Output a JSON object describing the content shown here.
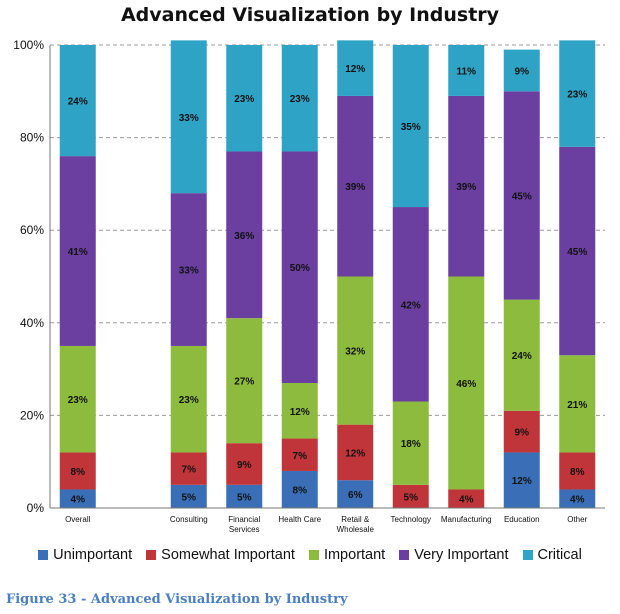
{
  "chart_data": {
    "type": "bar",
    "stacked": true,
    "title": "Advanced Visualization by Industry",
    "categories": [
      "Overall",
      "",
      "Consulting",
      "Financial Services",
      "Health Care",
      "Retail & Wholesale",
      "Technology",
      "Manufacturing",
      "Education",
      "Other"
    ],
    "category_lines": [
      [
        "Overall"
      ],
      [],
      [
        "Consulting"
      ],
      [
        "Financial",
        "Services"
      ],
      [
        "Health Care"
      ],
      [
        "Retail &",
        "Wholesale"
      ],
      [
        "Technology"
      ],
      [
        "Manufacturing"
      ],
      [
        "Education"
      ],
      [
        "Other"
      ]
    ],
    "series": [
      {
        "name": "Unimportant",
        "color": "#3a6fb7",
        "values": [
          4,
          null,
          5,
          5,
          8,
          6,
          0,
          0,
          12,
          4
        ]
      },
      {
        "name": "Somewhat Important",
        "color": "#c0353a",
        "values": [
          8,
          null,
          7,
          9,
          7,
          12,
          5,
          4,
          9,
          8
        ]
      },
      {
        "name": "Important",
        "color": "#8dbb3d",
        "values": [
          23,
          null,
          23,
          27,
          12,
          32,
          18,
          46,
          24,
          21
        ]
      },
      {
        "name": "Very Important",
        "color": "#6b3fa0",
        "values": [
          41,
          null,
          33,
          36,
          50,
          39,
          42,
          39,
          45,
          45
        ]
      },
      {
        "name": "Critical",
        "color": "#2ea3c5",
        "values": [
          24,
          null,
          33,
          23,
          23,
          12,
          35,
          11,
          9,
          23
        ]
      }
    ],
    "ylim": [
      0,
      100
    ],
    "yticks": [
      "0%",
      "20%",
      "40%",
      "60%",
      "80%",
      "100%"
    ],
    "grid": true,
    "legend_position": "bottom",
    "data_label_suffix": "%"
  },
  "caption": "Figure 33 - Advanced Visualization by Industry"
}
